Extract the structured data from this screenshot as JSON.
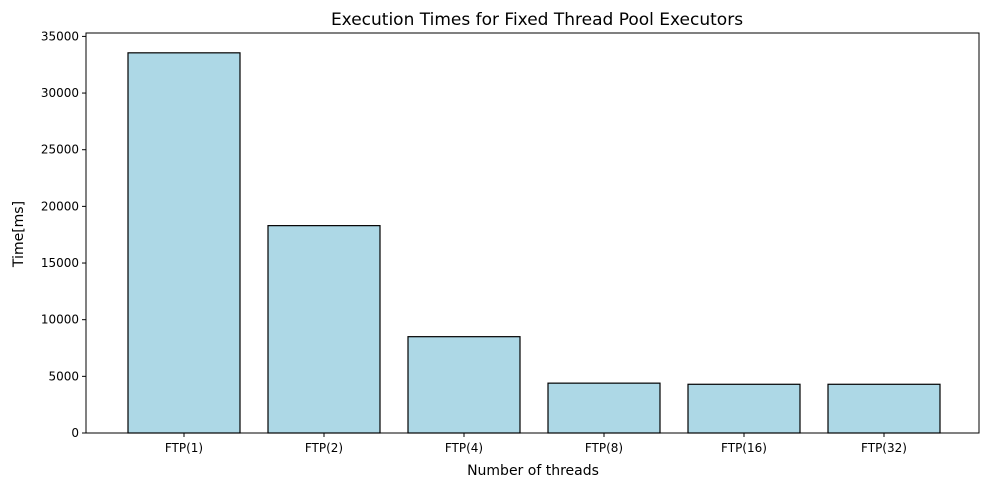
{
  "chart_data": {
    "type": "bar",
    "title": "Execution Times for Fixed Thread Pool Executors",
    "xlabel": "Number of threads",
    "ylabel": "Time[ms]",
    "categories": [
      "FTP(1)",
      "FTP(2)",
      "FTP(4)",
      "FTP(8)",
      "FTP(16)",
      "FTP(32)"
    ],
    "values": [
      33550,
      18300,
      8500,
      4400,
      4300,
      4300
    ],
    "ylim": [
      0,
      35300
    ],
    "yticks": [
      0,
      5000,
      10000,
      15000,
      20000,
      25000,
      30000,
      35000
    ],
    "grid": false,
    "bar_color": "#add8e6",
    "edge_color": "#000000"
  }
}
